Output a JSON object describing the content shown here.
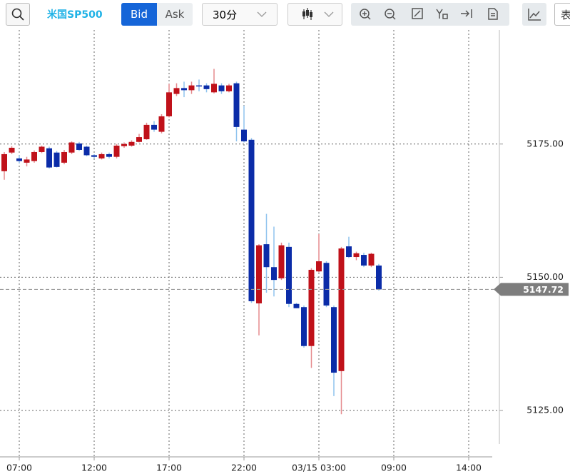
{
  "toolbar": {
    "symbol": "米国SP500",
    "bid": "Bid",
    "ask": "Ask",
    "interval": "30分",
    "table": "表"
  },
  "chart_data": {
    "type": "candlestick",
    "categories": [
      null,
      null,
      "07:00",
      null,
      null,
      null,
      null,
      null,
      null,
      null,
      null,
      null,
      "12:00",
      null,
      null,
      null,
      null,
      null,
      null,
      null,
      null,
      null,
      "17:00",
      null,
      null,
      null,
      null,
      null,
      null,
      null,
      null,
      null,
      "22:00",
      null,
      null,
      null,
      null,
      null,
      null,
      null,
      null,
      null,
      "03/15 03:00",
      null,
      null,
      null,
      null,
      null,
      null,
      null,
      null,
      null,
      "09:00",
      null,
      null,
      null,
      null,
      null,
      null,
      null,
      null,
      null,
      "14:00"
    ],
    "open": [
      5169.9,
      5173.4,
      5172.3,
      5171.5,
      5171.8,
      5173.5,
      5174.2,
      5173.4,
      5171.5,
      5173.4,
      5175.1,
      5174.5,
      5172.9,
      5172.3,
      5173.1,
      5172.6,
      5174.6,
      5174.7,
      5175.4,
      5175.9,
      5178.6,
      5177.3,
      5180.2,
      5184.4,
      5185.5,
      5185.1,
      5186.0,
      5186.0,
      5184.7,
      5186.0,
      5184.9,
      5186.4,
      5177.7,
      5175.8,
      5145.1,
      5156.2,
      5151.9,
      5149.8,
      5155.7,
      5145.0,
      5144.4,
      5137.1,
      5151.1,
      5152.7,
      5144.4,
      5132.4,
      5155.8,
      5153.8,
      5154.2,
      5152.2,
      5152.2,
      null,
      null,
      null,
      null,
      null,
      null,
      null,
      null,
      null,
      null,
      null,
      null
    ],
    "high": [
      5173.5,
      5174.6,
      5172.9,
      5172.6,
      5173.8,
      5174.7,
      5174.5,
      5173.7,
      5173.9,
      5175.5,
      5175.4,
      5174.7,
      5173.1,
      5173.4,
      5173.4,
      5175.0,
      5175.3,
      5175.7,
      5176.9,
      5179.0,
      5179.3,
      5180.6,
      5186.3,
      5186.4,
      5186.7,
      5186.7,
      5187.1,
      5186.4,
      5189.1,
      5186.4,
      5186.3,
      5186.7,
      5182.2,
      5176.1,
      5156.2,
      5161.9,
      5159.5,
      5156.5,
      5156.5,
      5145.2,
      5144.7,
      5151.7,
      5158.1,
      5153.0,
      5144.7,
      5155.7,
      5157.6,
      5154.8,
      5154.6,
      5154.6,
      5152.5,
      null,
      null,
      null,
      null,
      null,
      null,
      null,
      null,
      null,
      null,
      null,
      null
    ],
    "low": [
      5168.3,
      5173.1,
      5171.4,
      5170.8,
      5171.5,
      5173.3,
      5170.4,
      5170.6,
      5171.2,
      5173.1,
      5173.7,
      5172.7,
      5172.3,
      5172.1,
      5172.3,
      5172.3,
      5174.3,
      5174.5,
      5175.3,
      5175.8,
      5177.3,
      5177.0,
      5180.0,
      5184.0,
      5183.8,
      5184.4,
      5184.9,
      5184.7,
      5184.5,
      5184.4,
      5184.7,
      5175.5,
      5175.3,
      5145.2,
      5139.1,
      5147.1,
      5146.4,
      5149.5,
      5144.4,
      5144.2,
      5136.8,
      5133.0,
      5150.9,
      5144.4,
      5127.7,
      5124.3,
      5153.6,
      5153.2,
      5151.9,
      5151.9,
      5147.5,
      null,
      null,
      null,
      null,
      null,
      null,
      null,
      null,
      null,
      null,
      null,
      null
    ],
    "close": [
      5173.1,
      5174.3,
      5171.8,
      5172.1,
      5173.5,
      5174.5,
      5170.6,
      5170.7,
      5173.5,
      5175.3,
      5173.9,
      5172.9,
      5172.6,
      5173.1,
      5172.6,
      5174.7,
      5175.0,
      5175.4,
      5176.3,
      5178.6,
      5177.7,
      5180.2,
      5184.7,
      5185.5,
      5185.1,
      5186.0,
      5185.9,
      5185.3,
      5186.3,
      5184.9,
      5186.0,
      5178.2,
      5175.5,
      5145.5,
      5156.0,
      5151.9,
      5149.5,
      5156.0,
      5145.0,
      5144.2,
      5137.1,
      5151.4,
      5153.0,
      5144.7,
      5132.1,
      5155.4,
      5153.8,
      5154.5,
      5152.2,
      5154.4,
      5147.72,
      null,
      null,
      null,
      null,
      null,
      null,
      null,
      null,
      null,
      null,
      null,
      null
    ],
    "up_color": "#c0111a",
    "down_color": "#0b2ca8",
    "up_wick_color": "#e58a8e",
    "down_wick_color": "#8fc3ee",
    "ylim": [
      5116.3,
      5196.4
    ],
    "yticks": [
      {
        "value": 5125,
        "label": "5125.00"
      },
      {
        "value": 5150,
        "label": "5150.00"
      },
      {
        "value": 5175,
        "label": "5175.00"
      }
    ],
    "last_price": 5147.72,
    "grid": true
  }
}
